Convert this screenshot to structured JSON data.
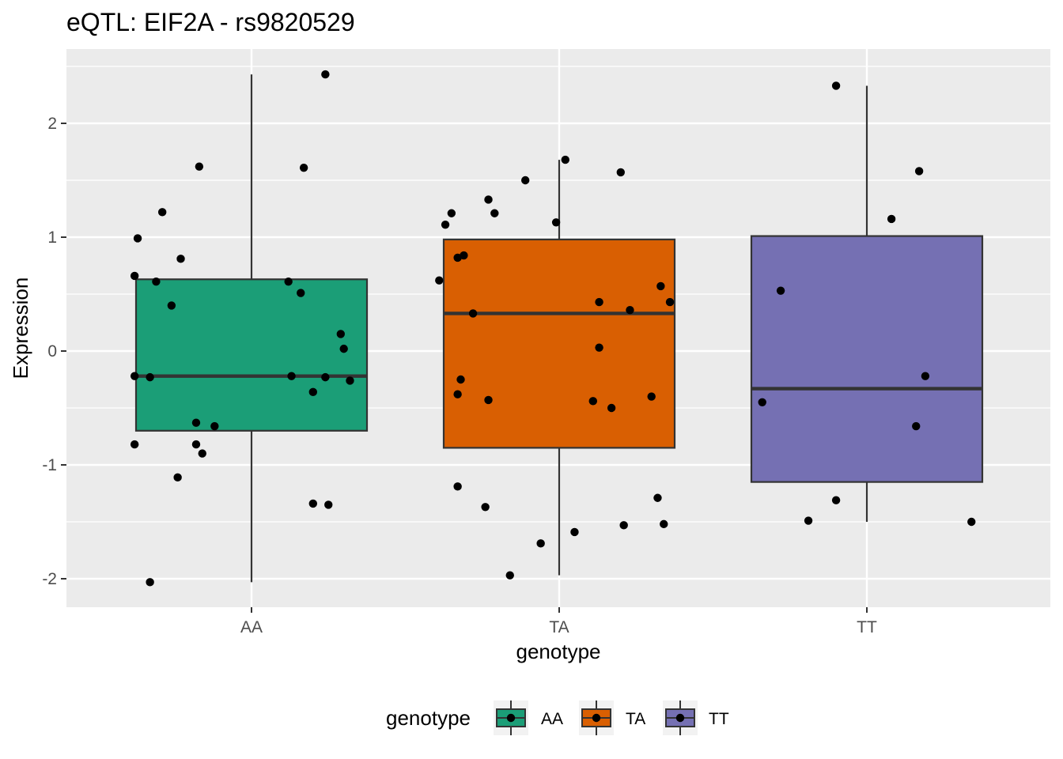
{
  "chart_data": {
    "type": "box",
    "title": "eQTL: EIF2A - rs9820529",
    "xlabel": "genotype",
    "ylabel": "Expression",
    "ylim": [
      -2.2,
      2.7
    ],
    "y_ticks": [
      -2,
      -1,
      0,
      1,
      2
    ],
    "y_tick_labels": [
      "-2",
      "-1",
      "0",
      "1",
      "2"
    ],
    "grid": true,
    "legend": {
      "title": "genotype",
      "position": "bottom"
    },
    "categories": [
      "AA",
      "TA",
      "TT"
    ],
    "colors": {
      "AA": "#1b9e77",
      "TA": "#d95f02",
      "TT": "#7570b3"
    },
    "boxes": [
      {
        "category": "AA",
        "min": -2.03,
        "q1": -0.7,
        "median": -0.22,
        "q3": 0.63,
        "max": 2.43
      },
      {
        "category": "TA",
        "min": -1.97,
        "q1": -0.85,
        "median": 0.33,
        "q3": 0.98,
        "max": 1.68
      },
      {
        "category": "TT",
        "min": -1.5,
        "q1": -1.15,
        "median": -0.33,
        "q3": 1.01,
        "max": 2.33
      }
    ],
    "points": [
      {
        "group": "AA",
        "jitter": -0.38,
        "y": 0.66
      },
      {
        "group": "AA",
        "jitter": -0.37,
        "y": 0.99
      },
      {
        "group": "AA",
        "jitter": -0.38,
        "y": -0.22
      },
      {
        "group": "AA",
        "jitter": -0.38,
        "y": -0.82
      },
      {
        "group": "AA",
        "jitter": -0.33,
        "y": -2.03
      },
      {
        "group": "AA",
        "jitter": -0.33,
        "y": -0.23
      },
      {
        "group": "AA",
        "jitter": -0.31,
        "y": 0.61
      },
      {
        "group": "AA",
        "jitter": -0.29,
        "y": 1.22
      },
      {
        "group": "AA",
        "jitter": -0.26,
        "y": 0.4
      },
      {
        "group": "AA",
        "jitter": -0.24,
        "y": -1.11
      },
      {
        "group": "AA",
        "jitter": -0.23,
        "y": 0.81
      },
      {
        "group": "AA",
        "jitter": -0.18,
        "y": -0.63
      },
      {
        "group": "AA",
        "jitter": -0.18,
        "y": -0.82
      },
      {
        "group": "AA",
        "jitter": -0.17,
        "y": 1.62
      },
      {
        "group": "AA",
        "jitter": -0.16,
        "y": -0.9
      },
      {
        "group": "AA",
        "jitter": -0.12,
        "y": -0.66
      },
      {
        "group": "AA",
        "jitter": 0.12,
        "y": 0.61
      },
      {
        "group": "AA",
        "jitter": 0.13,
        "y": -0.22
      },
      {
        "group": "AA",
        "jitter": 0.16,
        "y": 0.51
      },
      {
        "group": "AA",
        "jitter": 0.17,
        "y": 1.61
      },
      {
        "group": "AA",
        "jitter": 0.2,
        "y": -0.36
      },
      {
        "group": "AA",
        "jitter": 0.2,
        "y": -1.34
      },
      {
        "group": "AA",
        "jitter": 0.24,
        "y": 2.43
      },
      {
        "group": "AA",
        "jitter": 0.24,
        "y": -0.23
      },
      {
        "group": "AA",
        "jitter": 0.25,
        "y": -1.35
      },
      {
        "group": "AA",
        "jitter": 0.29,
        "y": 0.15
      },
      {
        "group": "AA",
        "jitter": 0.3,
        "y": 0.02
      },
      {
        "group": "AA",
        "jitter": 0.32,
        "y": -0.26
      },
      {
        "group": "TA",
        "jitter": -0.39,
        "y": 0.62
      },
      {
        "group": "TA",
        "jitter": -0.37,
        "y": 1.11
      },
      {
        "group": "TA",
        "jitter": -0.35,
        "y": 1.21
      },
      {
        "group": "TA",
        "jitter": -0.33,
        "y": 0.82
      },
      {
        "group": "TA",
        "jitter": -0.33,
        "y": -0.38
      },
      {
        "group": "TA",
        "jitter": -0.33,
        "y": -1.19
      },
      {
        "group": "TA",
        "jitter": -0.32,
        "y": -0.25
      },
      {
        "group": "TA",
        "jitter": -0.31,
        "y": 0.84
      },
      {
        "group": "TA",
        "jitter": -0.28,
        "y": 0.33
      },
      {
        "group": "TA",
        "jitter": -0.24,
        "y": -1.37
      },
      {
        "group": "TA",
        "jitter": -0.23,
        "y": 1.33
      },
      {
        "group": "TA",
        "jitter": -0.23,
        "y": -0.43
      },
      {
        "group": "TA",
        "jitter": -0.21,
        "y": 1.21
      },
      {
        "group": "TA",
        "jitter": -0.16,
        "y": -1.97
      },
      {
        "group": "TA",
        "jitter": -0.11,
        "y": 1.5
      },
      {
        "group": "TA",
        "jitter": -0.06,
        "y": -1.69
      },
      {
        "group": "TA",
        "jitter": -0.01,
        "y": 1.13
      },
      {
        "group": "TA",
        "jitter": 0.02,
        "y": 1.68
      },
      {
        "group": "TA",
        "jitter": 0.05,
        "y": -1.59
      },
      {
        "group": "TA",
        "jitter": 0.11,
        "y": -0.44
      },
      {
        "group": "TA",
        "jitter": 0.13,
        "y": 0.03
      },
      {
        "group": "TA",
        "jitter": 0.13,
        "y": 0.43
      },
      {
        "group": "TA",
        "jitter": 0.17,
        "y": -0.5
      },
      {
        "group": "TA",
        "jitter": 0.2,
        "y": 1.57
      },
      {
        "group": "TA",
        "jitter": 0.21,
        "y": -1.53
      },
      {
        "group": "TA",
        "jitter": 0.23,
        "y": 0.36
      },
      {
        "group": "TA",
        "jitter": 0.3,
        "y": -0.4
      },
      {
        "group": "TA",
        "jitter": 0.32,
        "y": -1.29
      },
      {
        "group": "TA",
        "jitter": 0.33,
        "y": 0.57
      },
      {
        "group": "TA",
        "jitter": 0.34,
        "y": -1.52
      },
      {
        "group": "TA",
        "jitter": 0.36,
        "y": 0.43
      },
      {
        "group": "TT",
        "jitter": -0.34,
        "y": -0.45
      },
      {
        "group": "TT",
        "jitter": -0.28,
        "y": 0.53
      },
      {
        "group": "TT",
        "jitter": -0.19,
        "y": -1.49
      },
      {
        "group": "TT",
        "jitter": -0.1,
        "y": 2.33
      },
      {
        "group": "TT",
        "jitter": -0.1,
        "y": -1.31
      },
      {
        "group": "TT",
        "jitter": 0.08,
        "y": 1.16
      },
      {
        "group": "TT",
        "jitter": 0.17,
        "y": 1.58
      },
      {
        "group": "TT",
        "jitter": 0.16,
        "y": -0.66
      },
      {
        "group": "TT",
        "jitter": 0.19,
        "y": -0.22
      },
      {
        "group": "TT",
        "jitter": 0.34,
        "y": -1.5
      }
    ]
  }
}
